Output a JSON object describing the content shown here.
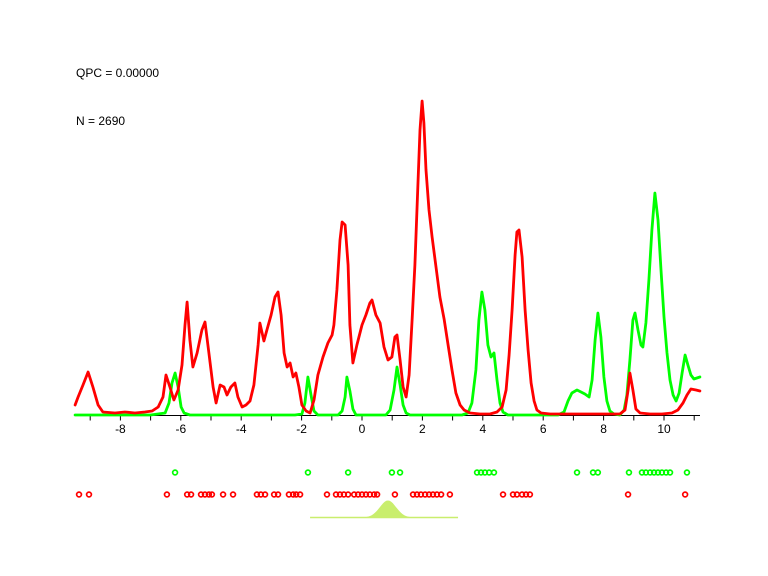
{
  "annotations": {
    "qpc_label": "QPC = 0.00000",
    "n_label": "N = 2690"
  },
  "chart_data": {
    "type": "line",
    "title": "",
    "xlabel": "",
    "ylabel": "",
    "xlim": [
      -9.5,
      11.2
    ],
    "ylim": [
      0,
      320
    ],
    "y_units": "density (arbitrary units, no y-axis shown)",
    "grid": false,
    "legend": "none",
    "x_tick_values": [
      -8,
      -6,
      -4,
      -2,
      0,
      2,
      4,
      6,
      8,
      10
    ],
    "x_tick_labels": [
      "-8",
      "-6",
      "-4",
      "-2",
      "0",
      "2",
      "4",
      "6",
      "8",
      "10"
    ],
    "minor_tick_values": [
      -9,
      -8,
      -7,
      -6,
      -5,
      -4,
      -3,
      -2,
      -1,
      0,
      1,
      2,
      3,
      4,
      5,
      6,
      7,
      8,
      9,
      10,
      11
    ],
    "colors": {
      "red_series": "#ff0000",
      "green_series": "#00ff00",
      "kernel_indicator": "#c9ee6d",
      "axis": "#000000",
      "text": "#000000",
      "background": "#ffffff"
    },
    "series": [
      {
        "name": "green-density",
        "color": "#00ff00",
        "points": [
          [
            -9.5,
            0
          ],
          [
            -8.0,
            0
          ],
          [
            -7.0,
            0
          ],
          [
            -6.52,
            2
          ],
          [
            -6.39,
            12
          ],
          [
            -6.29,
            32
          ],
          [
            -6.19,
            42
          ],
          [
            -6.09,
            28
          ],
          [
            -5.99,
            8
          ],
          [
            -5.89,
            2
          ],
          [
            -5.7,
            0
          ],
          [
            -4.0,
            0
          ],
          [
            -2.22,
            0
          ],
          [
            -1.99,
            1
          ],
          [
            -1.89,
            12
          ],
          [
            -1.79,
            38
          ],
          [
            -1.69,
            20
          ],
          [
            -1.59,
            4
          ],
          [
            -1.46,
            0
          ],
          [
            -0.79,
            0
          ],
          [
            -0.66,
            4
          ],
          [
            -0.56,
            18
          ],
          [
            -0.5,
            38
          ],
          [
            -0.4,
            24
          ],
          [
            -0.3,
            6
          ],
          [
            -0.2,
            0
          ],
          [
            0.79,
            0
          ],
          [
            0.93,
            5
          ],
          [
            1.06,
            25
          ],
          [
            1.16,
            48
          ],
          [
            1.26,
            30
          ],
          [
            1.36,
            10
          ],
          [
            1.46,
            2
          ],
          [
            1.59,
            0
          ],
          [
            2.5,
            0
          ],
          [
            3.31,
            0
          ],
          [
            3.51,
            2
          ],
          [
            3.64,
            12
          ],
          [
            3.77,
            45
          ],
          [
            3.87,
            95
          ],
          [
            3.97,
            123
          ],
          [
            4.07,
            105
          ],
          [
            4.17,
            70
          ],
          [
            4.27,
            58
          ],
          [
            4.37,
            62
          ],
          [
            4.47,
            35
          ],
          [
            4.57,
            12
          ],
          [
            4.67,
            3
          ],
          [
            4.83,
            0
          ],
          [
            5.5,
            0
          ],
          [
            6.49,
            0
          ],
          [
            6.69,
            3
          ],
          [
            6.82,
            14
          ],
          [
            6.95,
            22
          ],
          [
            7.12,
            25
          ],
          [
            7.25,
            23
          ],
          [
            7.38,
            21
          ],
          [
            7.52,
            18
          ],
          [
            7.62,
            35
          ],
          [
            7.72,
            75
          ],
          [
            7.81,
            102
          ],
          [
            7.91,
            78
          ],
          [
            8.01,
            38
          ],
          [
            8.11,
            14
          ],
          [
            8.21,
            4
          ],
          [
            8.34,
            1
          ],
          [
            8.54,
            0
          ],
          [
            8.68,
            5
          ],
          [
            8.77,
            20
          ],
          [
            8.87,
            55
          ],
          [
            8.97,
            95
          ],
          [
            9.04,
            102
          ],
          [
            9.14,
            85
          ],
          [
            9.24,
            70
          ],
          [
            9.3,
            68
          ],
          [
            9.4,
            92
          ],
          [
            9.5,
            135
          ],
          [
            9.6,
            185
          ],
          [
            9.7,
            222
          ],
          [
            9.8,
            195
          ],
          [
            9.9,
            145
          ],
          [
            10.0,
            98
          ],
          [
            10.1,
            62
          ],
          [
            10.2,
            35
          ],
          [
            10.3,
            20
          ],
          [
            10.4,
            14
          ],
          [
            10.5,
            22
          ],
          [
            10.6,
            42
          ],
          [
            10.7,
            60
          ],
          [
            10.79,
            50
          ],
          [
            10.89,
            40
          ],
          [
            10.99,
            36
          ],
          [
            11.19,
            38
          ]
        ]
      },
      {
        "name": "red-density",
        "color": "#ff0000",
        "points": [
          [
            -9.5,
            10
          ],
          [
            -9.4,
            18
          ],
          [
            -9.24,
            30
          ],
          [
            -9.07,
            43
          ],
          [
            -8.91,
            28
          ],
          [
            -8.74,
            10
          ],
          [
            -8.58,
            3
          ],
          [
            -8.18,
            2
          ],
          [
            -7.85,
            3
          ],
          [
            -7.52,
            2
          ],
          [
            -7.19,
            3
          ],
          [
            -6.95,
            4
          ],
          [
            -6.75,
            8
          ],
          [
            -6.59,
            18
          ],
          [
            -6.49,
            40
          ],
          [
            -6.36,
            28
          ],
          [
            -6.23,
            15
          ],
          [
            -6.09,
            25
          ],
          [
            -5.96,
            50
          ],
          [
            -5.86,
            90
          ],
          [
            -5.79,
            113
          ],
          [
            -5.7,
            75
          ],
          [
            -5.6,
            48
          ],
          [
            -5.46,
            62
          ],
          [
            -5.3,
            85
          ],
          [
            -5.2,
            93
          ],
          [
            -5.07,
            62
          ],
          [
            -4.93,
            28
          ],
          [
            -4.83,
            12
          ],
          [
            -4.7,
            30
          ],
          [
            -4.57,
            28
          ],
          [
            -4.47,
            20
          ],
          [
            -4.34,
            28
          ],
          [
            -4.21,
            32
          ],
          [
            -4.11,
            18
          ],
          [
            -3.97,
            8
          ],
          [
            -3.84,
            10
          ],
          [
            -3.71,
            14
          ],
          [
            -3.58,
            30
          ],
          [
            -3.44,
            70
          ],
          [
            -3.38,
            92
          ],
          [
            -3.25,
            74
          ],
          [
            -3.15,
            85
          ],
          [
            -3.01,
            100
          ],
          [
            -2.88,
            118
          ],
          [
            -2.78,
            123
          ],
          [
            -2.68,
            100
          ],
          [
            -2.58,
            62
          ],
          [
            -2.48,
            48
          ],
          [
            -2.38,
            52
          ],
          [
            -2.28,
            38
          ],
          [
            -2.19,
            42
          ],
          [
            -2.09,
            28
          ],
          [
            -1.99,
            10
          ],
          [
            -1.85,
            4
          ],
          [
            -1.72,
            2
          ],
          [
            -1.59,
            15
          ],
          [
            -1.46,
            40
          ],
          [
            -1.29,
            58
          ],
          [
            -1.13,
            72
          ],
          [
            -0.99,
            80
          ],
          [
            -0.93,
            90
          ],
          [
            -0.83,
            125
          ],
          [
            -0.73,
            175
          ],
          [
            -0.66,
            193
          ],
          [
            -0.56,
            190
          ],
          [
            -0.46,
            150
          ],
          [
            -0.4,
            90
          ],
          [
            -0.3,
            52
          ],
          [
            -0.17,
            70
          ],
          [
            0.0,
            90
          ],
          [
            0.13,
            100
          ],
          [
            0.26,
            112
          ],
          [
            0.33,
            115
          ],
          [
            0.46,
            100
          ],
          [
            0.6,
            92
          ],
          [
            0.73,
            68
          ],
          [
            0.86,
            55
          ],
          [
            0.99,
            58
          ],
          [
            1.09,
            78
          ],
          [
            1.16,
            80
          ],
          [
            1.26,
            55
          ],
          [
            1.36,
            28
          ],
          [
            1.46,
            18
          ],
          [
            1.56,
            40
          ],
          [
            1.66,
            95
          ],
          [
            1.75,
            150
          ],
          [
            1.85,
            230
          ],
          [
            1.92,
            285
          ],
          [
            1.99,
            314
          ],
          [
            2.05,
            292
          ],
          [
            2.12,
            245
          ],
          [
            2.22,
            205
          ],
          [
            2.32,
            178
          ],
          [
            2.45,
            148
          ],
          [
            2.58,
            118
          ],
          [
            2.72,
            96
          ],
          [
            2.85,
            70
          ],
          [
            2.98,
            45
          ],
          [
            3.11,
            22
          ],
          [
            3.25,
            10
          ],
          [
            3.38,
            5
          ],
          [
            3.58,
            2
          ],
          [
            3.91,
            1
          ],
          [
            4.24,
            1
          ],
          [
            4.47,
            3
          ],
          [
            4.64,
            8
          ],
          [
            4.77,
            25
          ],
          [
            4.87,
            60
          ],
          [
            4.97,
            105
          ],
          [
            5.07,
            160
          ],
          [
            5.13,
            183
          ],
          [
            5.2,
            185
          ],
          [
            5.3,
            158
          ],
          [
            5.4,
            105
          ],
          [
            5.5,
            65
          ],
          [
            5.6,
            32
          ],
          [
            5.7,
            14
          ],
          [
            5.79,
            5
          ],
          [
            5.93,
            2
          ],
          [
            6.23,
            1
          ],
          [
            6.72,
            1
          ],
          [
            7.22,
            1
          ],
          [
            7.72,
            1
          ],
          [
            8.21,
            1
          ],
          [
            8.54,
            1
          ],
          [
            8.71,
            5
          ],
          [
            8.81,
            25
          ],
          [
            8.87,
            42
          ],
          [
            8.97,
            25
          ],
          [
            9.07,
            6
          ],
          [
            9.21,
            2
          ],
          [
            9.54,
            1
          ],
          [
            9.93,
            1
          ],
          [
            10.26,
            2
          ],
          [
            10.46,
            5
          ],
          [
            10.63,
            12
          ],
          [
            10.76,
            20
          ],
          [
            10.89,
            26
          ],
          [
            11.06,
            25
          ],
          [
            11.19,
            24
          ]
        ]
      }
    ],
    "rug": {
      "green_dots_x": [
        -6.19,
        -1.79,
        -0.46,
        0.99,
        1.26,
        3.81,
        3.94,
        4.07,
        4.21,
        4.37,
        7.12,
        7.65,
        7.81,
        8.84,
        9.27,
        9.4,
        9.54,
        9.67,
        9.8,
        9.93,
        10.07,
        10.2,
        10.76
      ],
      "red_dots_x": [
        -9.37,
        -9.04,
        -6.46,
        -5.79,
        -5.66,
        -5.33,
        -5.2,
        -5.07,
        -4.97,
        -4.6,
        -4.27,
        -3.48,
        -3.35,
        -3.21,
        -2.91,
        -2.78,
        -2.42,
        -2.28,
        -2.18,
        -2.05,
        -1.16,
        -0.86,
        -0.73,
        -0.6,
        -0.46,
        -0.26,
        -0.13,
        0.0,
        0.13,
        0.26,
        0.4,
        0.5,
        1.09,
        1.69,
        1.82,
        1.95,
        2.09,
        2.22,
        2.35,
        2.48,
        2.62,
        2.91,
        4.67,
        5.0,
        5.13,
        5.3,
        5.43,
        5.56,
        8.81,
        10.7
      ]
    },
    "kernel_indicator": {
      "center": 0.86,
      "sigma": 0.27,
      "height": 17,
      "line_from": -1.72,
      "line_to": 3.18,
      "color": "#c9ee6d"
    }
  }
}
